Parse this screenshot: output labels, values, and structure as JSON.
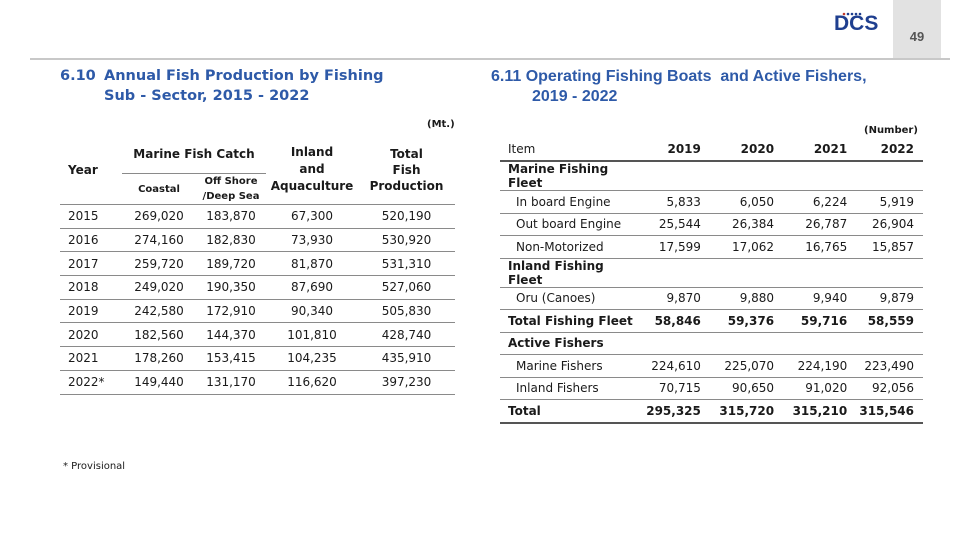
{
  "header": {
    "logo_text": "DCS",
    "page_number": "49",
    "accent_color": "#2e5aa8"
  },
  "left": {
    "number": "6.10",
    "title_line1": "Annual Fish Production by Fishing",
    "title_line2": "Sub - Sector, 2015 - 2022",
    "unit": "(Mt.)",
    "headers": {
      "year": "Year",
      "marine": "Marine Fish Catch",
      "coastal": "Coastal",
      "offshore_1": "Off Shore",
      "offshore_2": "/Deep Sea",
      "inland_1": "Inland",
      "inland_2": "and",
      "inland_3": "Aquaculture",
      "total_1": "Total",
      "total_2": "Fish",
      "total_3": "Production"
    },
    "rows": [
      {
        "year": "2015",
        "coastal": "269,020",
        "offshore": "183,870",
        "inland": "67,300",
        "total": "520,190"
      },
      {
        "year": "2016",
        "coastal": "274,160",
        "offshore": "182,830",
        "inland": "73,930",
        "total": "530,920"
      },
      {
        "year": "2017",
        "coastal": "259,720",
        "offshore": "189,720",
        "inland": "81,870",
        "total": "531,310"
      },
      {
        "year": "2018",
        "coastal": "249,020",
        "offshore": "190,350",
        "inland": "87,690",
        "total": "527,060"
      },
      {
        "year": "2019",
        "coastal": "242,580",
        "offshore": "172,910",
        "inland": "90,340",
        "total": "505,830"
      },
      {
        "year": "2020",
        "coastal": "182,560",
        "offshore": "144,370",
        "inland": "101,810",
        "total": "428,740"
      },
      {
        "year": "2021",
        "coastal": "178,260",
        "offshore": "153,415",
        "inland": "104,235",
        "total": "435,910"
      },
      {
        "year": "2022*",
        "coastal": "149,440",
        "offshore": "131,170",
        "inland": "116,620",
        "total": "397,230"
      }
    ],
    "footnote": "* Provisional"
  },
  "right": {
    "title_line1": "6.11 Operating Fishing Boats  and Active Fishers,",
    "title_line2": "2019 - 2022",
    "unit": "(Number)",
    "headers": {
      "item": "Item",
      "y2019": "2019",
      "y2020": "2020",
      "y2021": "2021",
      "y2022": "2022"
    },
    "rows": [
      {
        "item": "Marine Fishing Fleet",
        "bold": true,
        "sub": false,
        "v": [
          "",
          "",
          "",
          ""
        ]
      },
      {
        "item": "In board Engine",
        "bold": false,
        "sub": true,
        "v": [
          "5,833",
          "6,050",
          "6,224",
          "5,919"
        ]
      },
      {
        "item": "Out board Engine",
        "bold": false,
        "sub": true,
        "v": [
          "25,544",
          "26,384",
          "26,787",
          "26,904"
        ]
      },
      {
        "item": "Non-Motorized",
        "bold": false,
        "sub": true,
        "v": [
          "17,599",
          "17,062",
          "16,765",
          "15,857"
        ]
      },
      {
        "item": "Inland Fishing Fleet",
        "bold": true,
        "sub": false,
        "v": [
          "",
          "",
          "",
          ""
        ]
      },
      {
        "item": "Oru (Canoes)",
        "bold": false,
        "sub": true,
        "v": [
          "9,870",
          "9,880",
          "9,940",
          "9,879"
        ]
      },
      {
        "item": "Total Fishing Fleet",
        "bold": true,
        "sub": false,
        "v": [
          "58,846",
          "59,376",
          "59,716",
          "58,559"
        ]
      },
      {
        "item": "Active Fishers",
        "bold": true,
        "sub": false,
        "v": [
          "",
          "",
          "",
          ""
        ]
      },
      {
        "item": "Marine Fishers",
        "bold": false,
        "sub": true,
        "v": [
          "224,610",
          "225,070",
          "224,190",
          "223,490"
        ]
      },
      {
        "item": "Inland Fishers",
        "bold": false,
        "sub": true,
        "v": [
          "70,715",
          "90,650",
          "91,020",
          "92,056"
        ]
      },
      {
        "item": "Total",
        "bold": true,
        "sub": false,
        "v": [
          "295,325",
          "315,720",
          "315,210",
          "315,546"
        ]
      }
    ]
  }
}
